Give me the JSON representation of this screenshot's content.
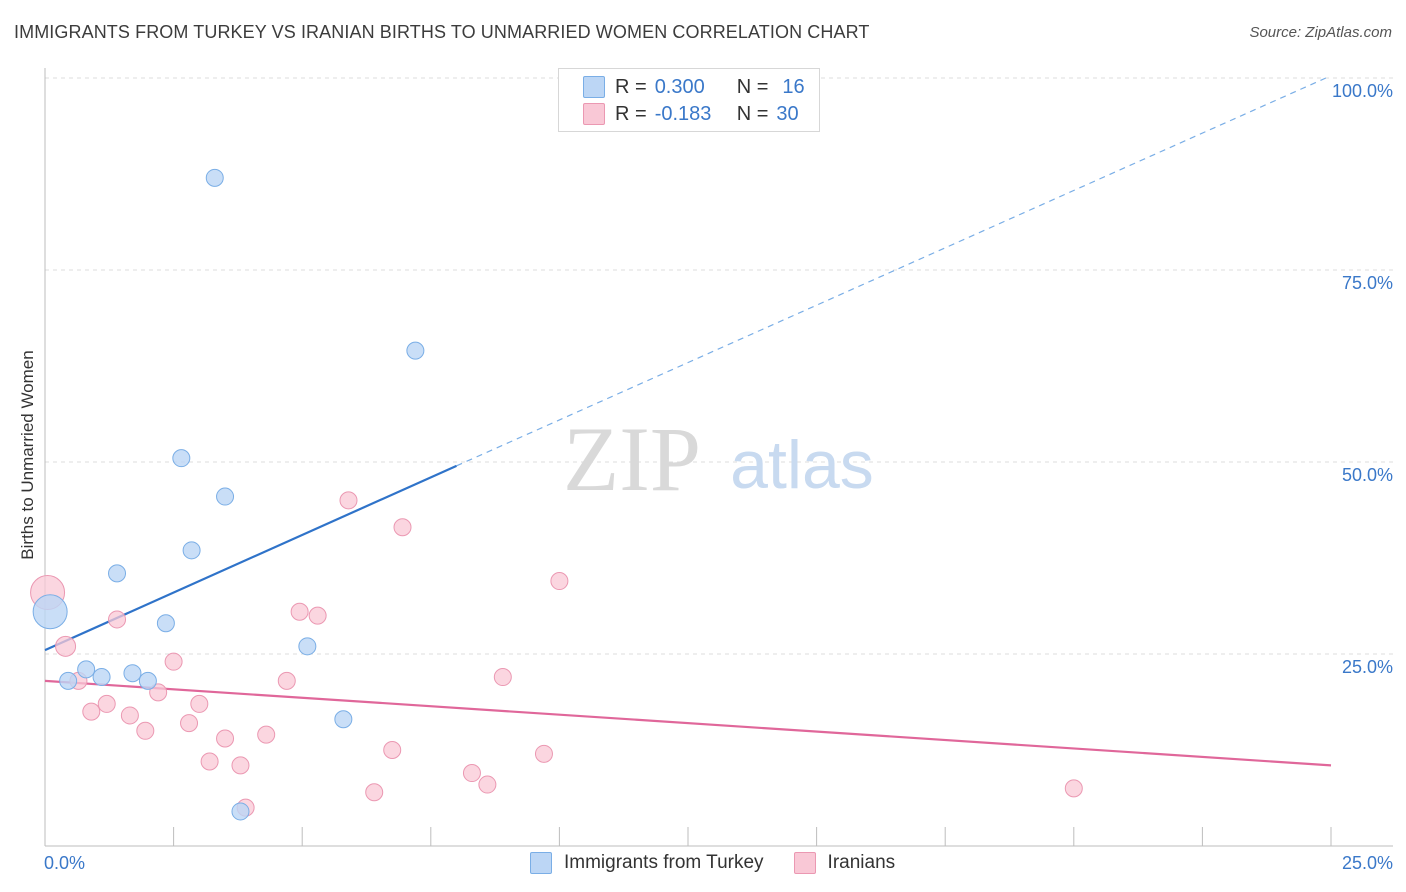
{
  "title": "IMMIGRANTS FROM TURKEY VS IRANIAN BIRTHS TO UNMARRIED WOMEN CORRELATION CHART",
  "source": "Source: ZipAtlas.com",
  "watermark": {
    "zip": "ZIP",
    "atlas": "atlas"
  },
  "legend_top": {
    "rows": [
      {
        "r_label": "R =",
        "r_value": "0.300",
        "n_label": "N =",
        "n_value": "16"
      },
      {
        "r_label": "R =",
        "r_value": "-0.183",
        "n_label": "N =",
        "n_value": "30"
      }
    ]
  },
  "colors": {
    "turkey_fill": "#bcd6f5",
    "turkey_stroke": "#7aaee6",
    "turkey_line": "#2f73c9",
    "iran_fill": "#f9c8d6",
    "iran_stroke": "#eb98b2",
    "iran_line": "#e0679a",
    "tick_label": "#3a78c9",
    "grid": "#dcdcdc"
  },
  "chart_data": {
    "type": "scatter",
    "title": "IMMIGRANTS FROM TURKEY VS IRANIAN BIRTHS TO UNMARRIED WOMEN CORRELATION CHART",
    "xlabel": "",
    "ylabel": "Births to Unmarried Women",
    "xlim": [
      0,
      25
    ],
    "ylim": [
      0,
      100
    ],
    "x_tick_labels": [
      "0.0%",
      "25.0%"
    ],
    "y_tick_labels": [
      "25.0%",
      "50.0%",
      "75.0%",
      "100.0%"
    ],
    "y_ticks": [
      25,
      50,
      75,
      100
    ],
    "grid": "horizontal dashed",
    "legend_position": "bottom",
    "series": [
      {
        "name": "Immigrants from Turkey",
        "x": [
          0.1,
          0.45,
          0.8,
          1.1,
          1.4,
          1.7,
          2.0,
          2.35,
          2.65,
          2.85,
          3.3,
          3.5,
          3.8,
          5.1,
          5.8,
          7.2
        ],
        "y": [
          30.5,
          21.5,
          23.0,
          22.0,
          35.5,
          22.5,
          21.5,
          29.0,
          50.5,
          38.5,
          87.0,
          45.5,
          4.5,
          26.0,
          16.5,
          64.5
        ],
        "r": 0.3,
        "n": 16,
        "trend": {
          "x": [
            0,
            8
          ],
          "y": [
            25.5,
            49.5
          ],
          "extended_to": [
            24.9,
            100
          ]
        }
      },
      {
        "name": "Iranians",
        "x": [
          0.05,
          0.4,
          0.65,
          0.9,
          1.2,
          1.4,
          1.65,
          1.95,
          2.2,
          2.5,
          2.8,
          3.0,
          3.2,
          3.5,
          3.8,
          3.9,
          4.3,
          4.7,
          4.95,
          5.3,
          5.9,
          6.4,
          6.75,
          6.95,
          8.3,
          8.6,
          8.9,
          9.7,
          10.0,
          20.0
        ],
        "y": [
          33.0,
          26.0,
          21.5,
          17.5,
          18.5,
          29.5,
          17.0,
          15.0,
          20.0,
          24.0,
          16.0,
          18.5,
          11.0,
          14.0,
          10.5,
          5.0,
          14.5,
          21.5,
          30.5,
          30.0,
          45.0,
          7.0,
          12.5,
          41.5,
          9.5,
          8.0,
          22.0,
          12.0,
          34.5,
          7.5
        ],
        "r": -0.183,
        "n": 30,
        "trend": {
          "x": [
            0,
            25
          ],
          "y": [
            21.5,
            10.5
          ]
        }
      }
    ]
  }
}
